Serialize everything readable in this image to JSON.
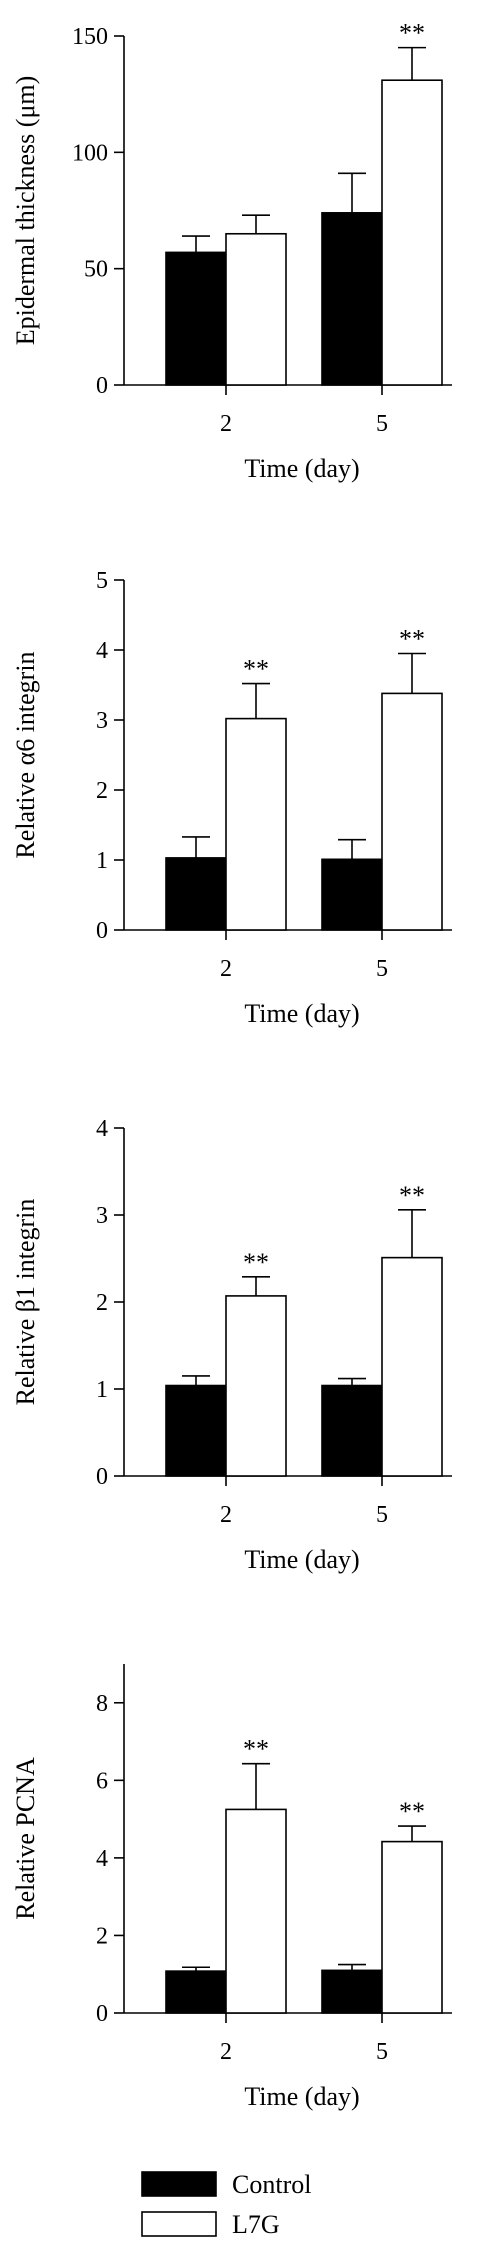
{
  "chart_data": [
    {
      "type": "bar",
      "categories": [
        "2",
        "5"
      ],
      "xlabel": "Time (day)",
      "ylabel": "Epidermal thickness (μm)",
      "ylim": [
        0,
        150
      ],
      "yticks": [
        0,
        50,
        100,
        150
      ],
      "series": [
        {
          "name": "Control",
          "color": "#000000",
          "values": [
            57,
            74
          ],
          "errors": [
            7,
            17
          ]
        },
        {
          "name": "L7G",
          "color": "#ffffff",
          "values": [
            65,
            131
          ],
          "errors": [
            8,
            14
          ]
        }
      ],
      "annotations": [
        "",
        "**"
      ]
    },
    {
      "type": "bar",
      "categories": [
        "2",
        "5"
      ],
      "xlabel": "Time (day)",
      "ylabel": "Relative α6 integrin",
      "ylim": [
        0,
        5
      ],
      "yticks": [
        0,
        1,
        2,
        3,
        4,
        5
      ],
      "series": [
        {
          "name": "Control",
          "color": "#000000",
          "values": [
            1.03,
            1.01
          ],
          "errors": [
            0.3,
            0.28
          ]
        },
        {
          "name": "L7G",
          "color": "#ffffff",
          "values": [
            3.02,
            3.38
          ],
          "errors": [
            0.5,
            0.57
          ]
        }
      ],
      "annotations": [
        "**",
        "**"
      ]
    },
    {
      "type": "bar",
      "categories": [
        "2",
        "5"
      ],
      "xlabel": "Time (day)",
      "ylabel": "Relative β1 integrin",
      "ylim": [
        0,
        4
      ],
      "yticks": [
        0,
        1,
        2,
        3,
        4
      ],
      "series": [
        {
          "name": "Control",
          "color": "#000000",
          "values": [
            1.04,
            1.04
          ],
          "errors": [
            0.11,
            0.08
          ]
        },
        {
          "name": "L7G",
          "color": "#ffffff",
          "values": [
            2.07,
            2.51
          ],
          "errors": [
            0.22,
            0.55
          ]
        }
      ],
      "annotations": [
        "**",
        "**"
      ]
    },
    {
      "type": "bar",
      "categories": [
        "2",
        "5"
      ],
      "xlabel": "Time (day)",
      "ylabel": "Relative PCNA",
      "ylim": [
        0,
        9
      ],
      "yticks": [
        0,
        2,
        4,
        6,
        8
      ],
      "series": [
        {
          "name": "Control",
          "color": "#000000",
          "values": [
            1.08,
            1.1
          ],
          "errors": [
            0.1,
            0.15
          ]
        },
        {
          "name": "L7G",
          "color": "#ffffff",
          "values": [
            5.25,
            4.42
          ],
          "errors": [
            1.18,
            0.4
          ]
        }
      ],
      "annotations": [
        "**",
        "**"
      ]
    }
  ],
  "legend": [
    {
      "label": "Control",
      "color": "#000000"
    },
    {
      "label": "L7G",
      "color": "#ffffff"
    }
  ]
}
